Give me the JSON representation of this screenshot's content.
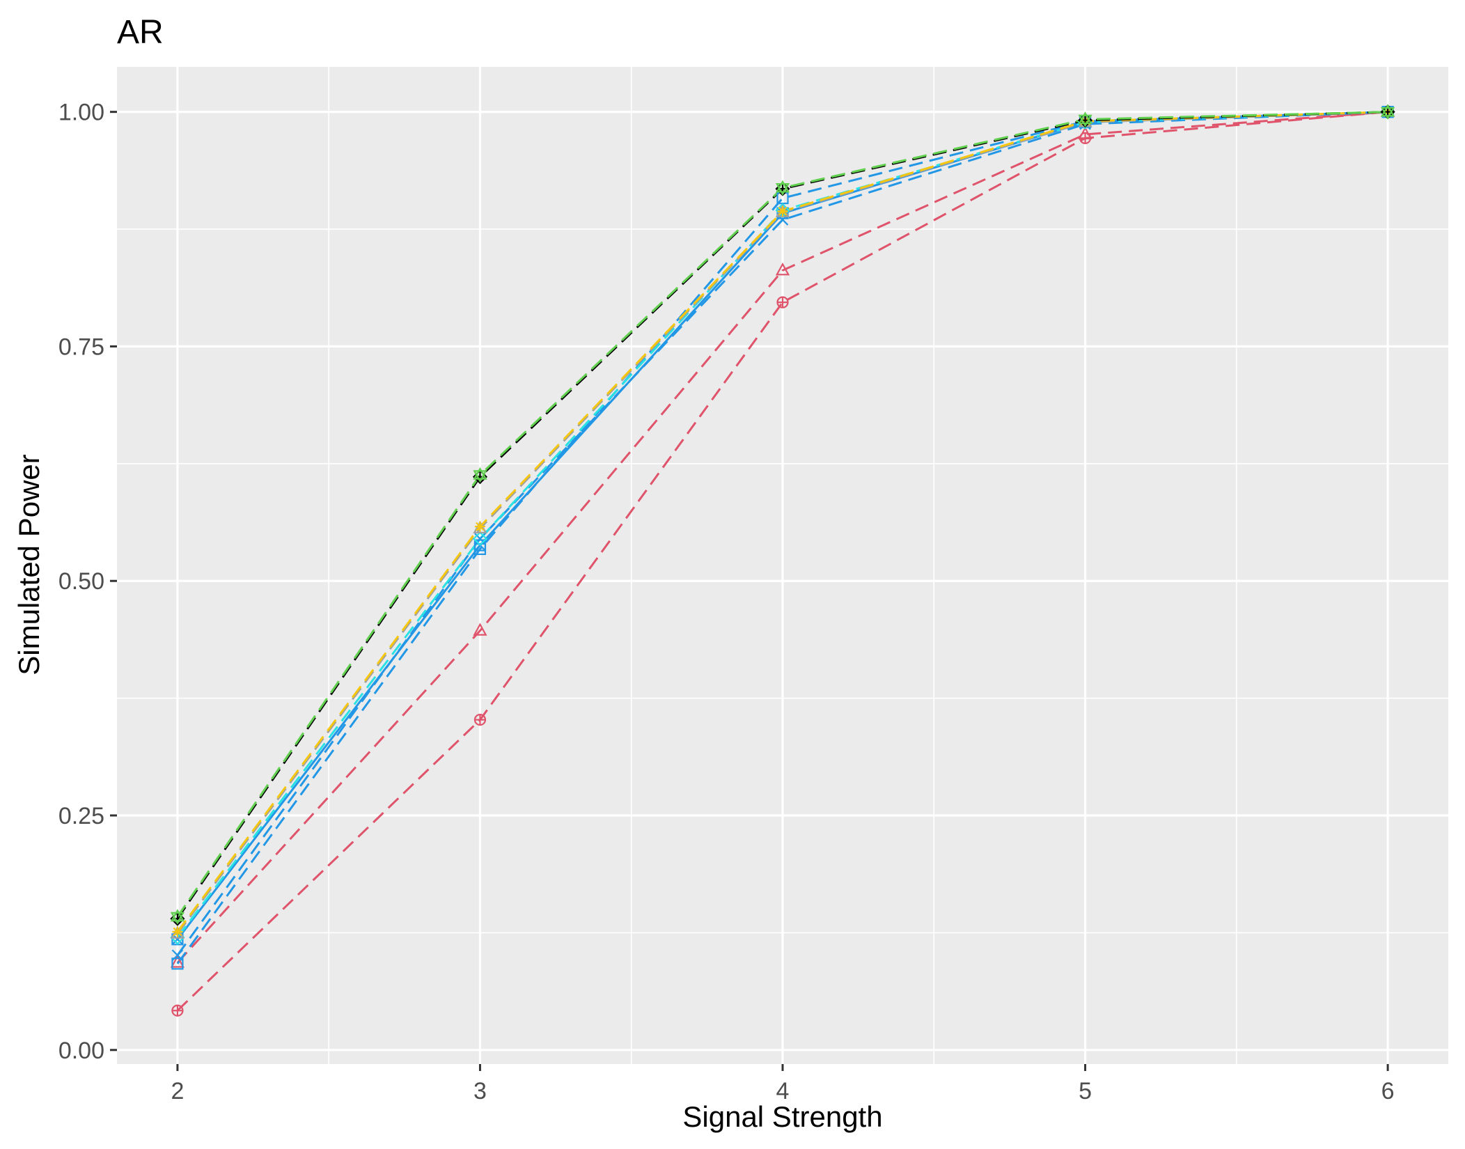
{
  "chart_data": {
    "type": "line",
    "title": "AR",
    "xlabel": "Signal Strength",
    "ylabel": "Simulated Power",
    "x": [
      2,
      3,
      4,
      5,
      6
    ],
    "xlim": [
      1.8,
      6.2
    ],
    "ylim": [
      -0.015,
      1.048
    ],
    "xticks": [
      2,
      3,
      4,
      5,
      6
    ],
    "xtick_labels": [
      "2",
      "3",
      "4",
      "5",
      "6"
    ],
    "yticks": [
      0,
      0.25,
      0.5,
      0.75,
      1
    ],
    "ytick_labels": [
      "0.00",
      "0.25",
      "0.50",
      "0.75",
      "1.00"
    ],
    "grid": true,
    "series": [
      {
        "name": "red-circle-plus",
        "color": "#DF536B",
        "dash": "dashed",
        "marker": "circle-plus",
        "values": [
          0.042,
          0.352,
          0.797,
          0.972,
          1.0
        ]
      },
      {
        "name": "red-triangle",
        "color": "#DF536B",
        "dash": "dashed",
        "marker": "triangle",
        "values": [
          0.093,
          0.447,
          0.831,
          0.976,
          1.0
        ]
      },
      {
        "name": "blue-square",
        "color": "#2297E6",
        "dash": "dashed",
        "marker": "square",
        "values": [
          0.092,
          0.534,
          0.908,
          0.99,
          1.0
        ]
      },
      {
        "name": "blue-x",
        "color": "#2297E6",
        "dash": "dashed",
        "marker": "x",
        "values": [
          0.101,
          0.545,
          0.885,
          0.987,
          1.0
        ]
      },
      {
        "name": "blue-solid-square-x",
        "color": "#2297E6",
        "dash": "solid",
        "marker": "square-x",
        "values": [
          0.118,
          0.538,
          0.892,
          0.989,
          1.0
        ]
      },
      {
        "name": "cyan-diamond",
        "color": "#28E2E5",
        "dash": "dashed",
        "marker": "diamond",
        "values": [
          0.12,
          0.545,
          0.895,
          0.989,
          1.0
        ]
      },
      {
        "name": "gray-triangle",
        "color": "#9E9E9E",
        "dash": "dashed",
        "marker": "triangle",
        "values": [
          0.124,
          0.556,
          0.893,
          0.989,
          1.0
        ]
      },
      {
        "name": "orange-star",
        "color": "#F5C710",
        "dash": "dashed",
        "marker": "star",
        "values": [
          0.126,
          0.558,
          0.894,
          0.99,
          1.0
        ]
      },
      {
        "name": "black-diamond-plus",
        "color": "#000000",
        "dash": "dashed",
        "marker": "diamond-plus",
        "values": [
          0.14,
          0.611,
          0.918,
          0.991,
          1.0
        ]
      },
      {
        "name": "green-asterisk",
        "color": "#61D04F",
        "dash": "dashed",
        "marker": "asterisk",
        "values": [
          0.142,
          0.613,
          0.919,
          0.992,
          1.0
        ]
      }
    ]
  }
}
